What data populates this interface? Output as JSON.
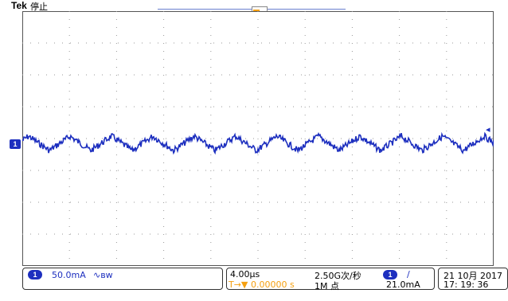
{
  "header": {
    "brand": "Tek",
    "run_status": "停止",
    "trigger_marker": "T"
  },
  "channel": {
    "badge": "1",
    "marker": "1",
    "scale": "50.0mA",
    "bw_symbol": "∿ʙw",
    "color": "#1d2fbf"
  },
  "timebase": {
    "scale": "4.00μs",
    "sample_rate": "2.50G次/秒",
    "trigger_offset_prefix": "T→▼",
    "trigger_offset": "0.00000 s",
    "record_length": "1M 点"
  },
  "trigger": {
    "source_badge": "1",
    "slope": "∕",
    "level": "21.0mA"
  },
  "datetime": {
    "date": "21 10月  2017",
    "time": "17: 19: 36"
  },
  "waveform": {
    "color": "#1d2fbf",
    "divisions_x": 10,
    "divisions_y": 8
  }
}
